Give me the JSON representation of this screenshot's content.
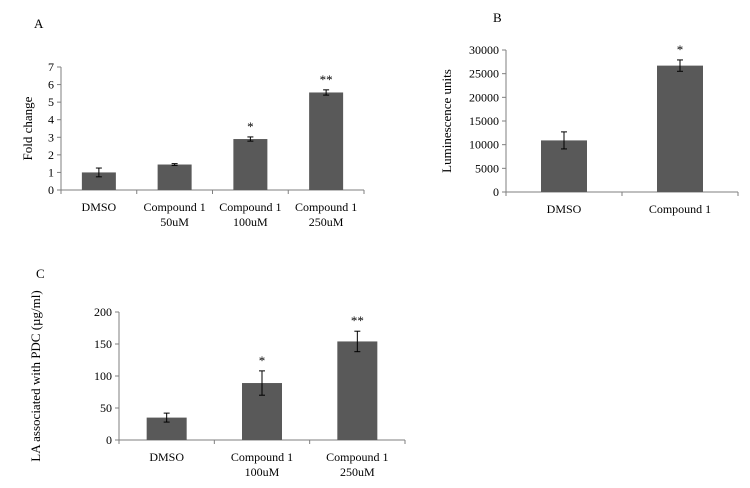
{
  "figure_panels": [
    "A",
    "B",
    "C"
  ],
  "chart_data": [
    {
      "id": "A",
      "type": "bar",
      "panel_label": "A",
      "ylabel": "Fold change",
      "ylim": [
        0,
        7
      ],
      "yticks": [
        0,
        1,
        2,
        3,
        4,
        5,
        6,
        7
      ],
      "grid": false,
      "categories": [
        [
          "DMSO"
        ],
        [
          "Compound 1",
          "50uM"
        ],
        [
          "Compound 1",
          "100uM"
        ],
        [
          "Compound 1",
          "250uM"
        ]
      ],
      "values": [
        1.0,
        1.45,
        2.9,
        5.55
      ],
      "errors": [
        0.25,
        0.05,
        0.12,
        0.15
      ],
      "significance": [
        "",
        "",
        "*",
        "**"
      ],
      "bar_color": "#595959"
    },
    {
      "id": "B",
      "type": "bar",
      "panel_label": "B",
      "ylabel": "Luminescence units",
      "ylim": [
        0,
        30000
      ],
      "yticks": [
        0,
        5000,
        10000,
        15000,
        20000,
        25000,
        30000
      ],
      "grid": false,
      "categories": [
        [
          "DMSO"
        ],
        [
          "Compound 1"
        ]
      ],
      "values": [
        10900,
        26700
      ],
      "errors": [
        1800,
        1200
      ],
      "significance": [
        "",
        "*"
      ],
      "bar_color": "#595959"
    },
    {
      "id": "C",
      "type": "bar",
      "panel_label": "C",
      "ylabel": "LA associated with PDC (µg/ml)",
      "ylim": [
        0,
        200
      ],
      "yticks": [
        0,
        50,
        100,
        150,
        200
      ],
      "grid": false,
      "categories": [
        [
          "DMSO"
        ],
        [
          "Compound 1",
          "100uM"
        ],
        [
          "Compound 1",
          "250uM"
        ]
      ],
      "values": [
        35,
        89,
        154
      ],
      "errors": [
        7,
        19,
        16
      ],
      "significance": [
        "",
        "*",
        "**"
      ],
      "bar_color": "#595959"
    }
  ]
}
